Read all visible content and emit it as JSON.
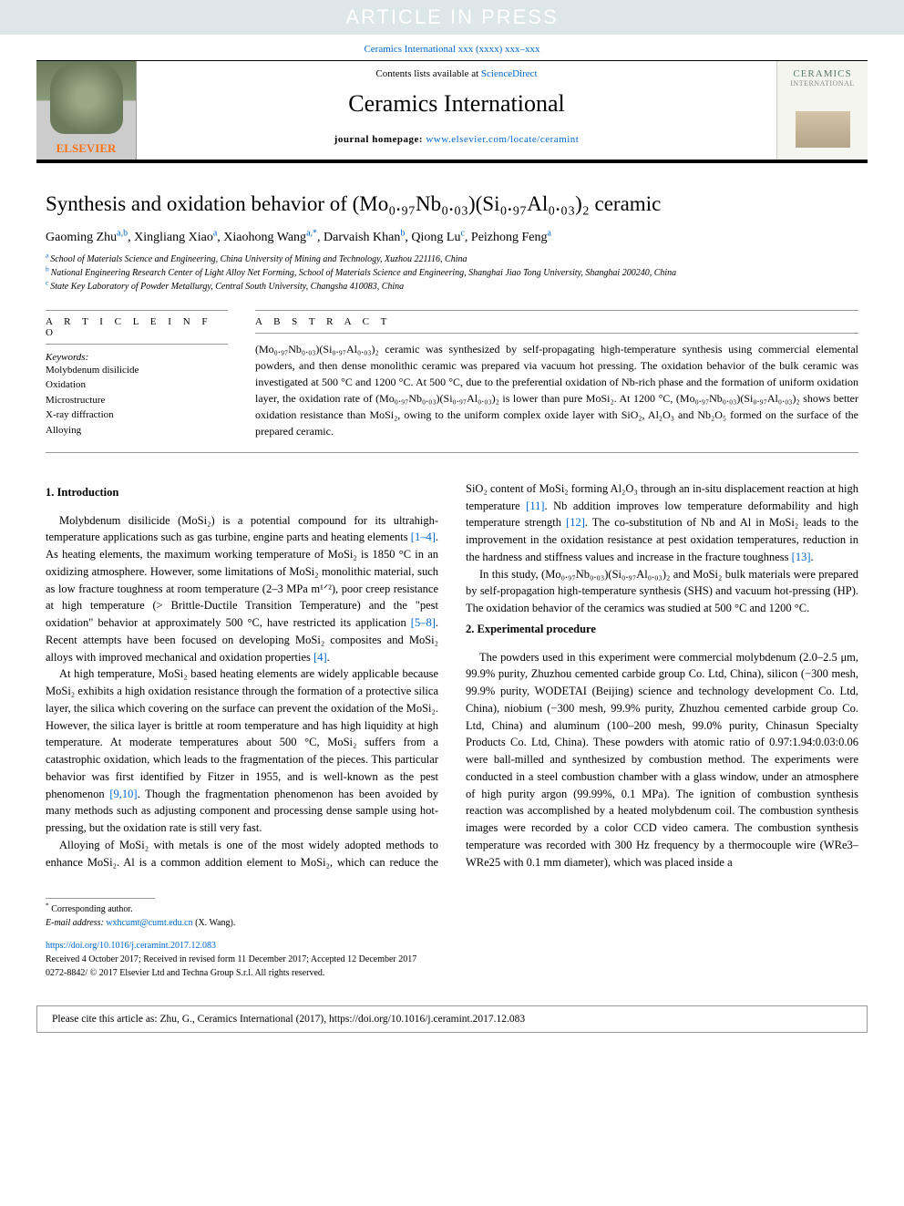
{
  "banner": "ARTICLE IN PRESS",
  "citation_top": "Ceramics International xxx (xxxx) xxx–xxx",
  "header": {
    "contents_prefix": "Contents lists available at ",
    "contents_link": "ScienceDirect",
    "journal": "Ceramics International",
    "homepage_prefix": "journal homepage: ",
    "homepage_url": "www.elsevier.com/locate/ceramint",
    "elsevier": "ELSEVIER",
    "cover_title": "CERAMICS",
    "cover_sub": "INTERNATIONAL"
  },
  "article": {
    "title_html": "Synthesis and oxidation behavior of (Mo₀.₉₇Nb₀.₀₃)(Si₀.₉₇Al₀.₀₃)₂ ceramic",
    "authors": [
      {
        "name": "Gaoming Zhu",
        "aff": "a,b"
      },
      {
        "name": "Xingliang Xiao",
        "aff": "a"
      },
      {
        "name": "Xiaohong Wang",
        "aff": "a,*"
      },
      {
        "name": "Darvaish Khan",
        "aff": "b"
      },
      {
        "name": "Qiong Lu",
        "aff": "c"
      },
      {
        "name": "Peizhong Feng",
        "aff": "a"
      }
    ],
    "affiliations": [
      {
        "sup": "a",
        "text": "School of Materials Science and Engineering, China University of Mining and Technology, Xuzhou 221116, China"
      },
      {
        "sup": "b",
        "text": "National Engineering Research Center of Light Alloy Net Forming, School of Materials Science and Engineering, Shanghai Jiao Tong University, Shanghai 200240, China"
      },
      {
        "sup": "c",
        "text": "State Key Laboratory of Powder Metallurgy, Central South University, Changsha 410083, China"
      }
    ]
  },
  "info": {
    "label": "A R T I C L E   I N F O",
    "keywords_label": "Keywords:",
    "keywords": [
      "Molybdenum disilicide",
      "Oxidation",
      "Microstructure",
      "X-ray diffraction",
      "Alloying"
    ]
  },
  "abstract": {
    "label": "A B S T R A C T",
    "text": "(Mo₀.₉₇Nb₀.₀₃)(Si₀.₉₇Al₀.₀₃)₂ ceramic was synthesized by self-propagating high-temperature synthesis using commercial elemental powders, and then dense monolithic ceramic was prepared via vacuum hot pressing. The oxidation behavior of the bulk ceramic was investigated at 500 °C and 1200 °C. At 500 °C, due to the preferential oxidation of Nb-rich phase and the formation of uniform oxidation layer, the oxidation rate of (Mo₀.₉₇Nb₀.₀₃)(Si₀.₉₇Al₀.₀₃)₂ is lower than pure MoSi₂. At 1200 °C, (Mo₀.₉₇Nb₀.₀₃)(Si₀.₉₇Al₀.₀₃)₂ shows better oxidation resistance than MoSi₂, owing to the uniform complex oxide layer with SiO₂, Al₂O₃ and Nb₂O₅ formed on the surface of the prepared ceramic."
  },
  "sections": {
    "intro_heading": "1. Introduction",
    "exp_heading": "2. Experimental procedure"
  },
  "paragraphs": {
    "p1a": "Molybdenum disilicide (MoSi₂) is a potential compound for its ultrahigh-temperature applications such as gas turbine, engine parts and heating elements ",
    "p1_ref1": "[1–4]",
    "p1b": ". As heating elements, the maximum working temperature of MoSi₂ is 1850 °C in an oxidizing atmosphere. However, some limitations of MoSi₂ monolithic material, such as low fracture toughness at room temperature (2–3 MPa m¹ᐟ²), poor creep resistance at high temperature (> Brittle-Ductile Transition Temperature) and the \"pest oxidation\" behavior at approximately 500 °C, have restricted its application ",
    "p1_ref2": "[5–8]",
    "p1c": ". Recent attempts have been focused on developing MoSi₂ composites and MoSi₂ alloys with improved mechanical and oxidation properties ",
    "p1_ref3": "[4]",
    "p1d": ".",
    "p2a": "At high temperature, MoSi₂ based heating elements are widely applicable because MoSi₂ exhibits a high oxidation resistance through the formation of a protective silica layer, the silica which covering on the surface can prevent the oxidation of the MoSi₂. However, the silica layer is brittle at room temperature and has high liquidity at high temperature. At moderate temperatures about 500 °C, MoSi₂ suffers from a catastrophic oxidation, which leads to the fragmentation of the pieces. This particular behavior was first identified by Fitzer in 1955, and is well-known as the pest phenomenon ",
    "p2_ref1": "[9,10]",
    "p2b": ". Though the fragmentation phenomenon has been avoided by many methods such as adjusting component and processing dense sample using hot-pressing, but the oxidation rate is still very fast.",
    "p3a": "Alloying of MoSi₂ with metals is one of the most widely adopted methods to enhance MoSi₂. Al is a common addition element to MoSi₂, which can reduce the SiO₂ content of MoSi₂ forming Al₂O₃ through an in-situ displacement reaction at high temperature ",
    "p3_ref1": "[11]",
    "p3b": ". Nb addition improves low temperature deformability and high temperature strength ",
    "p3_ref2": "[12]",
    "p3c": ". The co-substitution of Nb and Al in MoSi₂ leads to the improvement in the oxidation resistance at pest oxidation temperatures, reduction in the hardness and stiffness values and increase in the fracture toughness ",
    "p3_ref3": "[13]",
    "p3d": ".",
    "p4": "In this study, (Mo₀.₉₇Nb₀.₀₃)(Si₀.₉₇Al₀.₀₃)₂ and MoSi₂ bulk materials were prepared by self-propagation high-temperature synthesis (SHS) and vacuum hot-pressing (HP). The oxidation behavior of the ceramics was studied at 500 °C and 1200 °C.",
    "p5": "The powders used in this experiment were commercial molybdenum (2.0–2.5 μm, 99.9% purity, Zhuzhou cemented carbide group Co. Ltd, China), silicon (−300 mesh, 99.9% purity, WODETAI (Beijing) science and technology development Co. Ltd, China), niobium (−300 mesh, 99.9% purity, Zhuzhou cemented carbide group Co. Ltd, China) and aluminum (100–200 mesh, 99.0% purity, Chinasun Specialty Products Co. Ltd, China). These powders with atomic ratio of 0.97:1.94:0.03:0.06 were ball-milled and synthesized by combustion method. The experiments were conducted in a steel combustion chamber with a glass window, under an atmosphere of high purity argon (99.99%, 0.1 MPa). The ignition of combustion synthesis reaction was accomplished by a heated molybdenum coil. The combustion synthesis images were recorded by a color CCD video camera. The combustion synthesis temperature was recorded with 300 Hz frequency by a thermocouple wire (WRe3–WRe25 with 0.1 mm diameter), which was placed inside a"
  },
  "footer": {
    "corr_mark": "*",
    "corr_text": "Corresponding author.",
    "email_label": "E-mail address: ",
    "email": "wxhcumt@cumt.edu.cn",
    "email_name": " (X. Wang).",
    "doi": "https://doi.org/10.1016/j.ceramint.2017.12.083",
    "received": "Received 4 October 2017; Received in revised form 11 December 2017; Accepted 12 December 2017",
    "copyright": "0272-8842/ © 2017 Elsevier Ltd and Techna Group S.r.l. All rights reserved."
  },
  "cite_box": "Please cite this article as: Zhu, G., Ceramics International (2017), https://doi.org/10.1016/j.ceramint.2017.12.083",
  "colors": {
    "link": "#0066cc",
    "banner_bg": "#dde6e9",
    "banner_text": "#ffffff",
    "border": "#000000"
  }
}
